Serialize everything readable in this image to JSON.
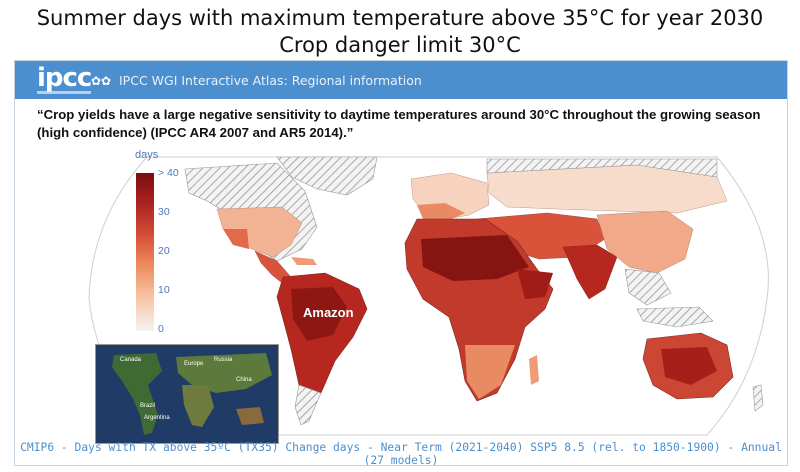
{
  "slide_title": {
    "line1": "Summer days with maximum temperature above 35°C  for year 2030",
    "line2": "Crop danger limit 30°C"
  },
  "header": {
    "logo": "ipcc",
    "title": "IPCC WGI Interactive Atlas: Regional information"
  },
  "quote": "“Crop yields have a large negative sensitivity to daytime temperatures around 30°C throughout the growing season (high confidence) (IPCC AR4 2007 and AR5 2014).”",
  "legend": {
    "unit": "days",
    "ticks": [
      "> 40",
      "30",
      "20",
      "10",
      "0"
    ]
  },
  "map": {
    "annotation": "Amazon"
  },
  "thumbnail": {
    "labels": [
      "Canada",
      "Europe",
      "Russia",
      "China",
      "Brazil",
      "Argentina"
    ]
  },
  "caption": "CMIP6 - Days with TX above 35ºC (TX35) Change days - Near Term (2021-2040) SSP5 8.5 (rel. to 1850-1900) - Annual (27 models)",
  "colors": {
    "header_bg": "#4c8fcf",
    "scale_high": "#7a0d10",
    "scale_low": "#f5f2f2",
    "caption": "#4c8fcf"
  }
}
